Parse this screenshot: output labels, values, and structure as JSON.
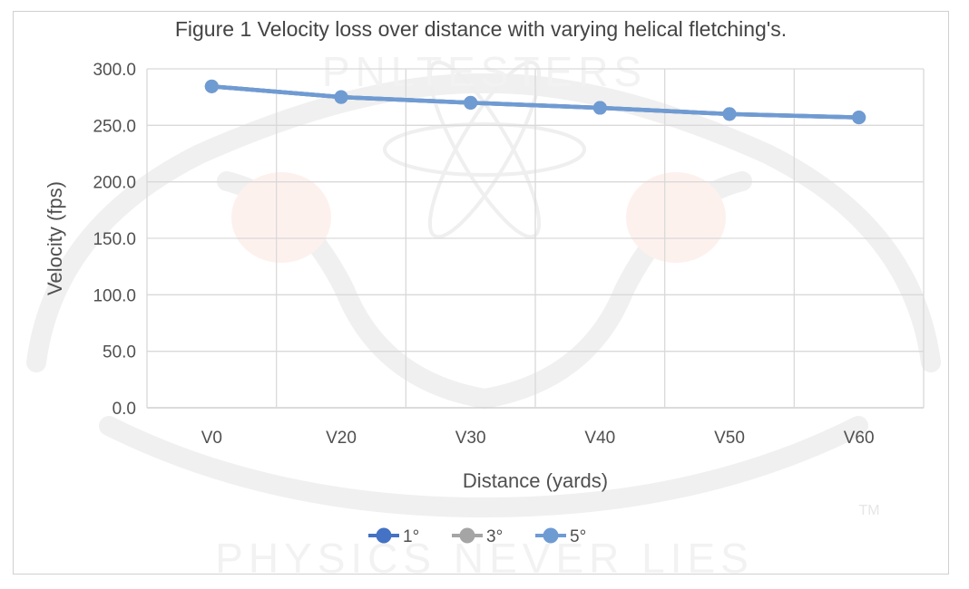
{
  "chart_data": {
    "type": "line",
    "title": "Figure 1 Velocity loss over distance with varying helical fletching's.",
    "xlabel": "Distance (yards)",
    "ylabel": "Velocity (fps)",
    "categories": [
      "V0",
      "V20",
      "V30",
      "V40",
      "V50",
      "V60"
    ],
    "ylim": [
      0,
      300
    ],
    "yticks": [
      "0.0",
      "50.0",
      "100.0",
      "150.0",
      "200.0",
      "250.0",
      "300.0"
    ],
    "grid": true,
    "legend_position": "bottom",
    "series": [
      {
        "name": "1°",
        "color": "#4472c4",
        "values": [
          284.5,
          275.0,
          270.0,
          265.5,
          260.0,
          257.0
        ]
      },
      {
        "name": "3°",
        "color": "#a5a5a5",
        "values": [
          284.5,
          275.0,
          270.0,
          265.5,
          260.0,
          257.0
        ]
      },
      {
        "name": "5°",
        "color": "#6f9bd3",
        "values": [
          284.5,
          275.0,
          270.0,
          265.5,
          260.0,
          257.0
        ]
      }
    ]
  },
  "watermark": {
    "top_text": "PNLTESTERS",
    "bottom_text": "PHYSICS NEVER LIES",
    "tm": "TM"
  }
}
